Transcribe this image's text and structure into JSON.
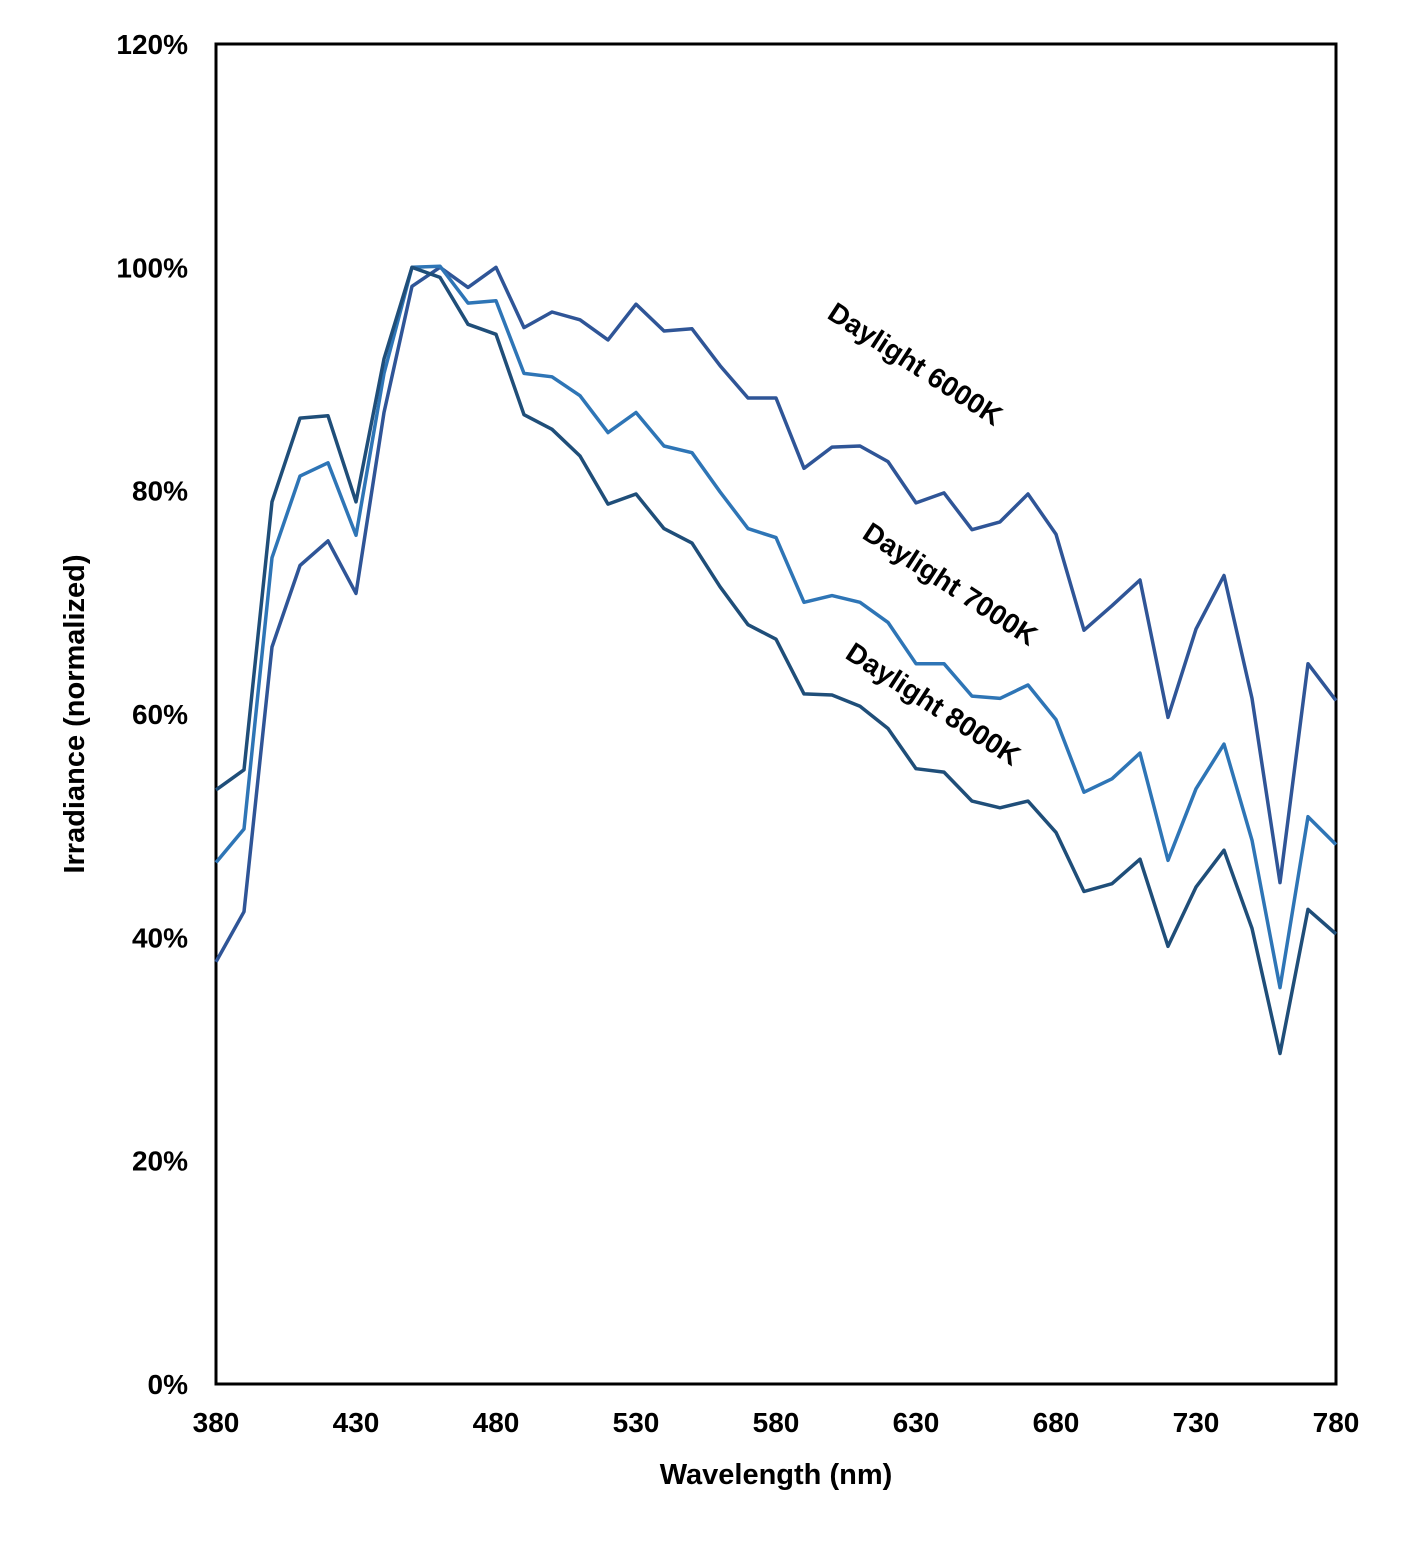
{
  "chart_data": {
    "type": "line",
    "title": "",
    "xlabel": "Wavelength (nm)",
    "ylabel": "Irradiance (normalized)",
    "xlim": [
      380,
      780
    ],
    "ylim": [
      0,
      1.2
    ],
    "xticks": [
      380,
      430,
      480,
      530,
      580,
      630,
      680,
      730,
      780
    ],
    "xtick_labels": [
      "380",
      "430",
      "480",
      "530",
      "580",
      "630",
      "680",
      "730",
      "780"
    ],
    "yticks": [
      0,
      0.2,
      0.4,
      0.6,
      0.8,
      1.0,
      1.2
    ],
    "ytick_labels": [
      "0%",
      "20%",
      "40%",
      "60%",
      "80%",
      "100%",
      "120%"
    ],
    "grid": false,
    "legend": "none",
    "x": [
      380,
      390,
      400,
      410,
      420,
      430,
      440,
      450,
      460,
      470,
      480,
      490,
      500,
      510,
      520,
      530,
      540,
      550,
      560,
      570,
      580,
      590,
      600,
      610,
      620,
      630,
      640,
      650,
      660,
      670,
      680,
      690,
      700,
      710,
      720,
      730,
      740,
      750,
      760,
      770,
      780
    ],
    "series": [
      {
        "name": "Daylight 6000K",
        "color": "#2f5597",
        "values": [
          0.378,
          0.423,
          0.66,
          0.733,
          0.755,
          0.708,
          0.87,
          0.983,
          1.0,
          0.982,
          1.0,
          0.946,
          0.96,
          0.953,
          0.935,
          0.967,
          0.943,
          0.945,
          0.912,
          0.883,
          0.883,
          0.82,
          0.839,
          0.84,
          0.826,
          0.789,
          0.798,
          0.765,
          0.772,
          0.797,
          0.761,
          0.675,
          0.697,
          0.72,
          0.597,
          0.676,
          0.724,
          0.614,
          0.449,
          0.645,
          0.612
        ]
      },
      {
        "name": "Daylight 7000K",
        "color": "#2e75b6",
        "values": [
          0.467,
          0.497,
          0.74,
          0.813,
          0.825,
          0.76,
          0.905,
          1.0,
          1.001,
          0.968,
          0.97,
          0.905,
          0.902,
          0.885,
          0.852,
          0.87,
          0.84,
          0.834,
          0.799,
          0.766,
          0.758,
          0.7,
          0.706,
          0.7,
          0.682,
          0.645,
          0.645,
          0.616,
          0.614,
          0.626,
          0.595,
          0.53,
          0.542,
          0.565,
          0.469,
          0.533,
          0.573,
          0.487,
          0.355,
          0.508,
          0.483
        ]
      },
      {
        "name": "Daylight 8000K",
        "color": "#1f4e79",
        "values": [
          0.532,
          0.55,
          0.79,
          0.865,
          0.867,
          0.79,
          0.918,
          1.0,
          0.991,
          0.949,
          0.94,
          0.868,
          0.855,
          0.831,
          0.788,
          0.797,
          0.766,
          0.753,
          0.714,
          0.68,
          0.667,
          0.618,
          0.617,
          0.607,
          0.587,
          0.551,
          0.548,
          0.522,
          0.516,
          0.522,
          0.494,
          0.441,
          0.448,
          0.47,
          0.392,
          0.445,
          0.478,
          0.408,
          0.296,
          0.425,
          0.403
        ]
      }
    ]
  }
}
